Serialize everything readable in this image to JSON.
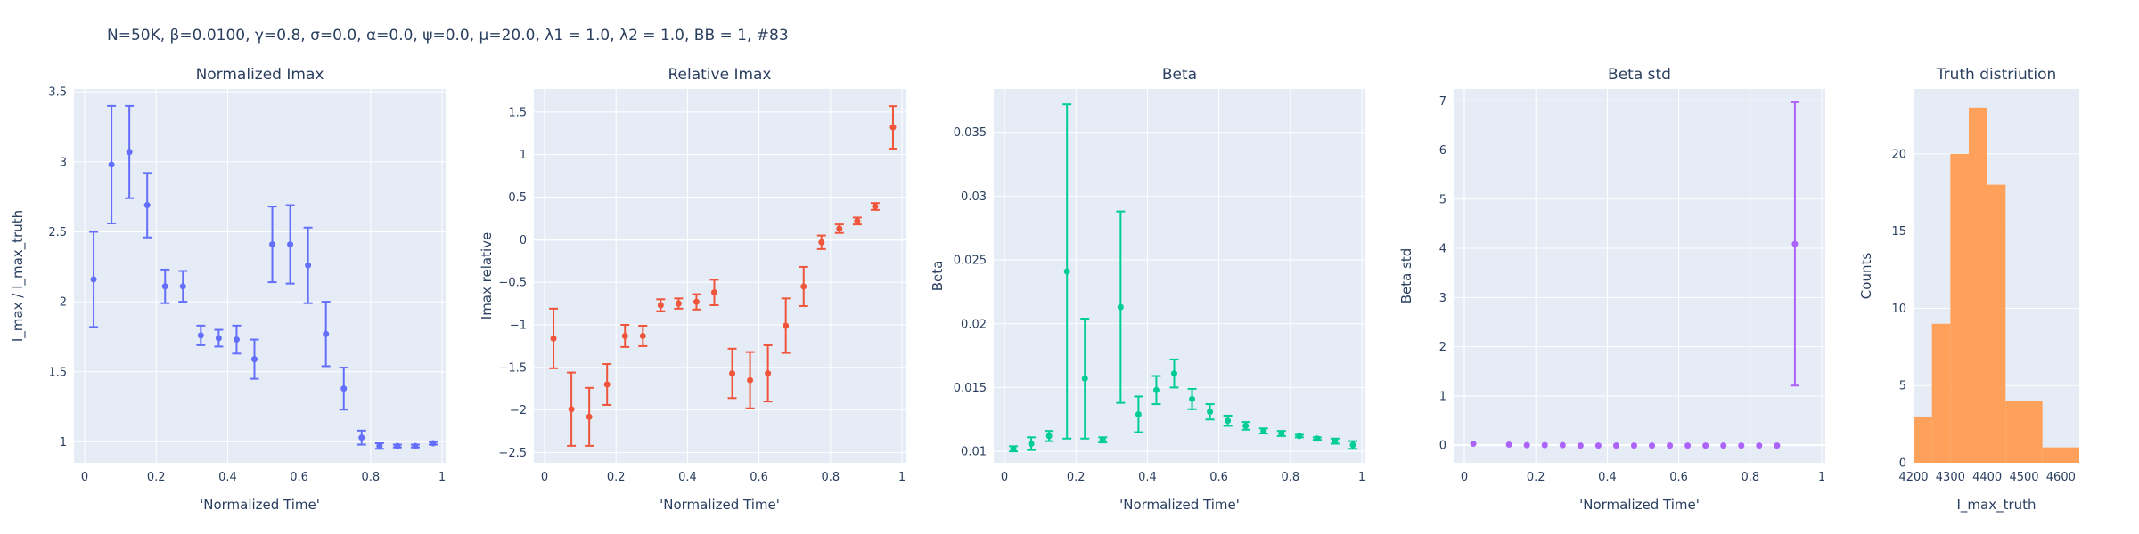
{
  "suptitle": "N=50K, β=0.0100, γ=0.8, σ=0.0,  α=0.0, ψ=0.0, μ=20.0, λ1 = 1.0, λ2 = 1.0, BB = 1, #83",
  "colors": {
    "plot_bg": "#e5ecf6",
    "grid": "#ffffff",
    "text": "#2a3f5f"
  },
  "chart_data": [
    {
      "type": "scatter",
      "error_bars": true,
      "title": "Normalized Imax",
      "xlabel": "'Normalized Time'",
      "ylabel": "I_max / I_max_truth",
      "color": "#636efa",
      "xlim": [
        -0.03,
        1.01
      ],
      "ylim": [
        0.85,
        3.52
      ],
      "xticks": [
        0,
        0.2,
        0.4,
        0.6,
        0.8,
        1
      ],
      "xtick_labels": [
        "0",
        "0.2",
        "0.4",
        "0.6",
        "0.8",
        "1"
      ],
      "yticks": [
        1,
        1.5,
        2,
        2.5,
        3,
        3.5
      ],
      "ytick_labels": [
        "1",
        "1.5",
        "2",
        "2.5",
        "3",
        "3.5"
      ],
      "x": [
        0.025,
        0.075,
        0.125,
        0.175,
        0.225,
        0.275,
        0.325,
        0.375,
        0.425,
        0.475,
        0.525,
        0.575,
        0.625,
        0.675,
        0.725,
        0.775,
        0.825,
        0.875,
        0.925,
        0.975
      ],
      "y": [
        2.16,
        2.98,
        3.07,
        2.69,
        2.11,
        2.11,
        1.76,
        1.74,
        1.73,
        1.59,
        2.41,
        2.41,
        2.26,
        1.77,
        1.38,
        1.03,
        0.97,
        0.97,
        0.97,
        0.99
      ],
      "error": [
        0.34,
        0.42,
        0.33,
        0.23,
        0.12,
        0.11,
        0.07,
        0.06,
        0.1,
        0.14,
        0.27,
        0.28,
        0.27,
        0.23,
        0.15,
        0.05,
        0.02,
        0.01,
        0.01,
        0.01
      ]
    },
    {
      "type": "scatter",
      "error_bars": true,
      "title": "Relative Imax",
      "xlabel": "'Normalized Time'",
      "ylabel": "Imax relative",
      "color": "#ef553b",
      "xlim": [
        -0.03,
        1.01
      ],
      "ylim": [
        -2.62,
        1.77
      ],
      "xticks": [
        0,
        0.2,
        0.4,
        0.6,
        0.8,
        1
      ],
      "xtick_labels": [
        "0",
        "0.2",
        "0.4",
        "0.6",
        "0.8",
        "1"
      ],
      "yticks": [
        -2.5,
        -2,
        -1.5,
        -1,
        -0.5,
        0,
        0.5,
        1,
        1.5
      ],
      "ytick_labels": [
        "−2.5",
        "−2",
        "−1.5",
        "−1",
        "−0.5",
        "0",
        "0.5",
        "1",
        "1.5"
      ],
      "x": [
        0.025,
        0.075,
        0.125,
        0.175,
        0.225,
        0.275,
        0.325,
        0.375,
        0.425,
        0.475,
        0.525,
        0.575,
        0.625,
        0.675,
        0.725,
        0.775,
        0.825,
        0.875,
        0.925,
        0.975
      ],
      "y": [
        -1.16,
        -1.99,
        -2.08,
        -1.7,
        -1.13,
        -1.13,
        -0.77,
        -0.75,
        -0.73,
        -0.62,
        -1.57,
        -1.65,
        -1.57,
        -1.01,
        -0.55,
        -0.03,
        0.13,
        0.22,
        0.39,
        1.32
      ],
      "error": [
        0.35,
        0.43,
        0.34,
        0.24,
        0.13,
        0.12,
        0.07,
        0.06,
        0.09,
        0.15,
        0.29,
        0.33,
        0.33,
        0.32,
        0.23,
        0.08,
        0.05,
        0.04,
        0.04,
        0.25
      ]
    },
    {
      "type": "scatter",
      "error_bars": true,
      "title": "Beta",
      "xlabel": "'Normalized Time'",
      "ylabel": "Beta",
      "color": "#00cc96",
      "xlim": [
        -0.03,
        1.01
      ],
      "ylim": [
        0.0091,
        0.0384
      ],
      "xticks": [
        0,
        0.2,
        0.4,
        0.6,
        0.8,
        1
      ],
      "xtick_labels": [
        "0",
        "0.2",
        "0.4",
        "0.6",
        "0.8",
        "1"
      ],
      "yticks": [
        0.01,
        0.015,
        0.02,
        0.025,
        0.03,
        0.035
      ],
      "ytick_labels": [
        "0.01",
        "0.015",
        "0.02",
        "0.025",
        "0.03",
        "0.035"
      ],
      "x": [
        0.025,
        0.075,
        0.125,
        0.175,
        0.225,
        0.275,
        0.325,
        0.375,
        0.425,
        0.475,
        0.525,
        0.575,
        0.625,
        0.675,
        0.725,
        0.775,
        0.825,
        0.875,
        0.925,
        0.975
      ],
      "y": [
        0.0102,
        0.0106,
        0.0112,
        0.0241,
        0.0157,
        0.0109,
        0.0213,
        0.0129,
        0.0148,
        0.0161,
        0.0141,
        0.0131,
        0.0124,
        0.012,
        0.0116,
        0.0114,
        0.0112,
        0.011,
        0.0108,
        0.0105
      ],
      "error": [
        0.0002,
        0.0005,
        0.0004,
        0.0131,
        0.0047,
        0.0002,
        0.0075,
        0.0014,
        0.0011,
        0.0011,
        0.0008,
        0.0006,
        0.0004,
        0.0003,
        0.0002,
        0.0002,
        0.0001,
        0.0001,
        0.0002,
        0.0003
      ]
    },
    {
      "type": "scatter",
      "error_bars": true,
      "title": "Beta std",
      "xlabel": "'Normalized Time'",
      "ylabel": "Beta std",
      "color": "#ab63fa",
      "xlim": [
        -0.03,
        1.01
      ],
      "ylim": [
        -0.36,
        7.24
      ],
      "xticks": [
        0,
        0.2,
        0.4,
        0.6,
        0.8,
        1
      ],
      "xtick_labels": [
        "0",
        "0.2",
        "0.4",
        "0.6",
        "0.8",
        "1"
      ],
      "yticks": [
        0,
        1,
        2,
        3,
        4,
        5,
        6,
        7
      ],
      "ytick_labels": [
        "0",
        "1",
        "2",
        "3",
        "4",
        "5",
        "6",
        "7"
      ],
      "x": [
        0.025,
        0.125,
        0.175,
        0.225,
        0.275,
        0.325,
        0.375,
        0.425,
        0.475,
        0.525,
        0.575,
        0.625,
        0.675,
        0.725,
        0.775,
        0.825,
        0.875,
        0.925
      ],
      "y": [
        0.03,
        0.01,
        0.0,
        0.0,
        0.0,
        -0.01,
        -0.01,
        -0.01,
        -0.01,
        -0.01,
        -0.01,
        -0.01,
        -0.01,
        -0.01,
        -0.01,
        -0.01,
        -0.01,
        4.09
      ],
      "error": [
        0,
        0,
        0,
        0,
        0,
        0,
        0,
        0,
        0,
        0,
        0,
        0,
        0,
        0,
        0,
        0,
        0,
        2.88
      ]
    },
    {
      "type": "bar",
      "histogram": true,
      "title": "Truth distriution",
      "xlabel": "I_max_truth",
      "ylabel": "Counts",
      "color": "#ffa15a",
      "xlim": [
        4200,
        4650
      ],
      "ylim": [
        0,
        24.2
      ],
      "xticks": [
        4200,
        4300,
        4400,
        4500,
        4600
      ],
      "xtick_labels": [
        "4200",
        "4300",
        "4400",
        "4500",
        "4600"
      ],
      "yticks": [
        0,
        5,
        10,
        15,
        20
      ],
      "ytick_labels": [
        "0",
        "5",
        "10",
        "15",
        "20"
      ],
      "bin_edges": [
        4200,
        4250,
        4300,
        4350,
        4400,
        4450,
        4500,
        4550,
        4600,
        4650
      ],
      "counts": [
        3,
        9,
        20,
        23,
        18,
        4,
        4,
        1,
        1
      ]
    }
  ]
}
